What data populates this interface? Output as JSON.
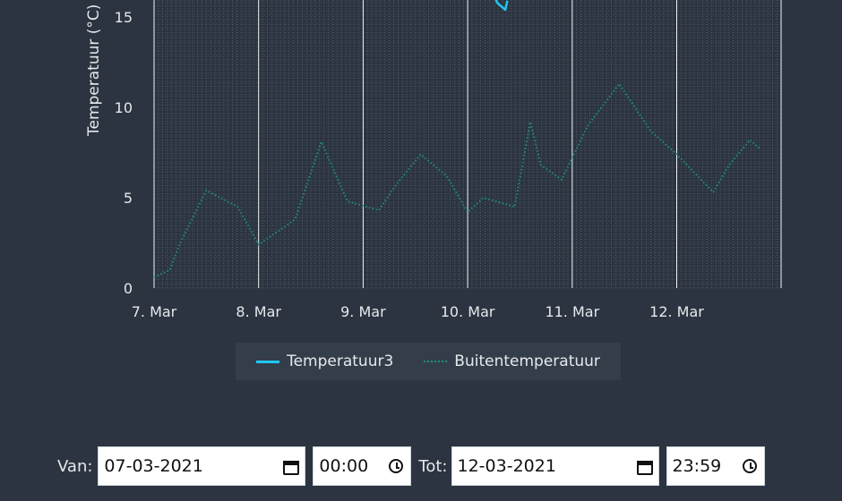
{
  "chart_data": {
    "type": "line",
    "ylabel": "Temperatuur (°C)",
    "xlabel": "",
    "ylim": [
      0,
      16
    ],
    "yticks": [
      "0",
      "5",
      "10",
      "15"
    ],
    "x_ticks": [
      "7. Mar",
      "8. Mar",
      "9. Mar",
      "10. Mar",
      "11. Mar",
      "12. Mar"
    ],
    "grid": "on",
    "legend_placement": "bottom-center",
    "series": [
      {
        "name": "Temperatuur3",
        "color": "#1ec8f0",
        "style": "solid",
        "points": [
          [
            3.25,
            16.3
          ],
          [
            3.28,
            15.8
          ],
          [
            3.32,
            15.6
          ],
          [
            3.36,
            15.4
          ],
          [
            3.38,
            15.9
          ]
        ]
      },
      {
        "name": "Buitentemperatuur",
        "color": "#1f8f7e",
        "style": "dotted",
        "points": [
          [
            0.0,
            0.6
          ],
          [
            0.15,
            1.0
          ],
          [
            0.25,
            2.5
          ],
          [
            0.5,
            5.4
          ],
          [
            0.8,
            4.5
          ],
          [
            1.0,
            2.4
          ],
          [
            1.35,
            3.8
          ],
          [
            1.6,
            8.1
          ],
          [
            1.85,
            4.8
          ],
          [
            2.15,
            4.3
          ],
          [
            2.3,
            5.6
          ],
          [
            2.55,
            7.4
          ],
          [
            2.8,
            6.2
          ],
          [
            3.0,
            4.2
          ],
          [
            3.15,
            5.0
          ],
          [
            3.45,
            4.5
          ],
          [
            3.6,
            9.2
          ],
          [
            3.7,
            6.8
          ],
          [
            3.9,
            6.0
          ],
          [
            4.15,
            9.0
          ],
          [
            4.45,
            11.3
          ],
          [
            4.75,
            8.7
          ],
          [
            5.0,
            7.4
          ],
          [
            5.35,
            5.3
          ],
          [
            5.5,
            6.8
          ],
          [
            5.7,
            8.2
          ],
          [
            5.8,
            7.7
          ]
        ]
      }
    ]
  },
  "legend": {
    "temp3_label": "Temperatuur3",
    "outside_label": "Buitentemperatuur"
  },
  "controls": {
    "from_label": "Van:",
    "from_date": "07-03-2021",
    "from_time": "00:00",
    "to_label": "Tot:",
    "to_date": "12-03-2021",
    "to_time": "23:59"
  },
  "icons": [
    "calendar-icon",
    "clock-icon"
  ],
  "colors": {
    "background": "#2b3440",
    "temperatuur3": "#1ec8f0",
    "buitentemperatuur": "#1f8f7e"
  }
}
